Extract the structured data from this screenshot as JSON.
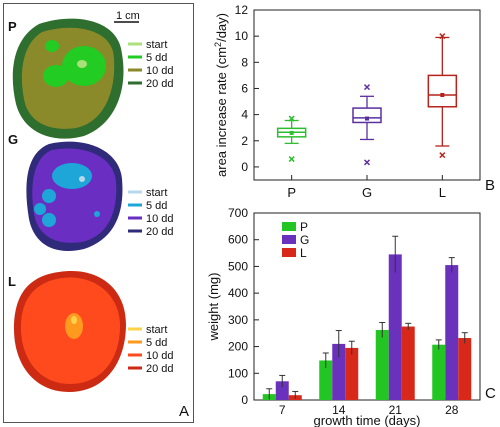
{
  "panelA": {
    "letter": "A",
    "scale_label": "1 cm",
    "samples": [
      {
        "letter": "P",
        "legend": [
          {
            "label": "start",
            "color": "#a9e07a"
          },
          {
            "label": "5 dd",
            "color": "#22cc22"
          },
          {
            "label": "10 dd",
            "color": "#8a8a2a"
          },
          {
            "label": "20 dd",
            "color": "#2e6e2e"
          }
        ]
      },
      {
        "letter": "G",
        "legend": [
          {
            "label": "start",
            "color": "#b5d8ea"
          },
          {
            "label": "5 dd",
            "color": "#1fa6d8"
          },
          {
            "label": "10 dd",
            "color": "#6a2fc2"
          },
          {
            "label": "20 dd",
            "color": "#2f2a7a"
          }
        ]
      },
      {
        "letter": "L",
        "legend": [
          {
            "label": "start",
            "color": "#ffd24a"
          },
          {
            "label": "5 dd",
            "color": "#ff9a1e"
          },
          {
            "label": "10 dd",
            "color": "#ff4a1e"
          },
          {
            "label": "20 dd",
            "color": "#cc2a12"
          }
        ]
      }
    ]
  },
  "chart_data": [
    {
      "type": "box",
      "panel_letter": "B",
      "ylabel": "area increase rate (cm²/day)",
      "ylim": [
        -1,
        12
      ],
      "yticks": [
        0,
        2,
        4,
        6,
        8,
        10,
        12
      ],
      "categories": [
        "P",
        "G",
        "L"
      ],
      "colors": [
        "#2ebd2e",
        "#5a2fa0",
        "#b5241b"
      ],
      "boxes": [
        {
          "category": "P",
          "whisker_low": 1.8,
          "q1": 2.3,
          "median": 2.65,
          "q3": 2.95,
          "whisker_high": 3.55,
          "mean": 2.6,
          "outliers": [
            0.6,
            3.7
          ]
        },
        {
          "category": "G",
          "whisker_low": 2.1,
          "q1": 3.4,
          "median": 3.75,
          "q3": 4.5,
          "whisker_high": 5.4,
          "mean": 3.7,
          "outliers": [
            0.35,
            6.1
          ]
        },
        {
          "category": "L",
          "whisker_low": 1.6,
          "q1": 4.6,
          "median": 5.5,
          "q3": 7.0,
          "whisker_high": 9.9,
          "mean": 5.5,
          "outliers": [
            0.9,
            10.0
          ]
        }
      ]
    },
    {
      "type": "bar",
      "panel_letter": "C",
      "xlabel": "growth time (days)",
      "ylabel": "weight (mg)",
      "ylim": [
        0,
        700
      ],
      "yticks": [
        0,
        100,
        200,
        300,
        400,
        500,
        600,
        700
      ],
      "categories": [
        "7",
        "14",
        "21",
        "28"
      ],
      "series": [
        {
          "name": "P",
          "color": "#22c522",
          "values": [
            22,
            148,
            262,
            207
          ],
          "errors": [
            20,
            28,
            28,
            18
          ]
        },
        {
          "name": "G",
          "color": "#6a31bd",
          "values": [
            70,
            210,
            545,
            505
          ],
          "errors": [
            22,
            50,
            68,
            28
          ]
        },
        {
          "name": "L",
          "color": "#d8281a",
          "values": [
            18,
            195,
            275,
            232
          ],
          "errors": [
            14,
            25,
            12,
            20
          ]
        }
      ]
    }
  ]
}
